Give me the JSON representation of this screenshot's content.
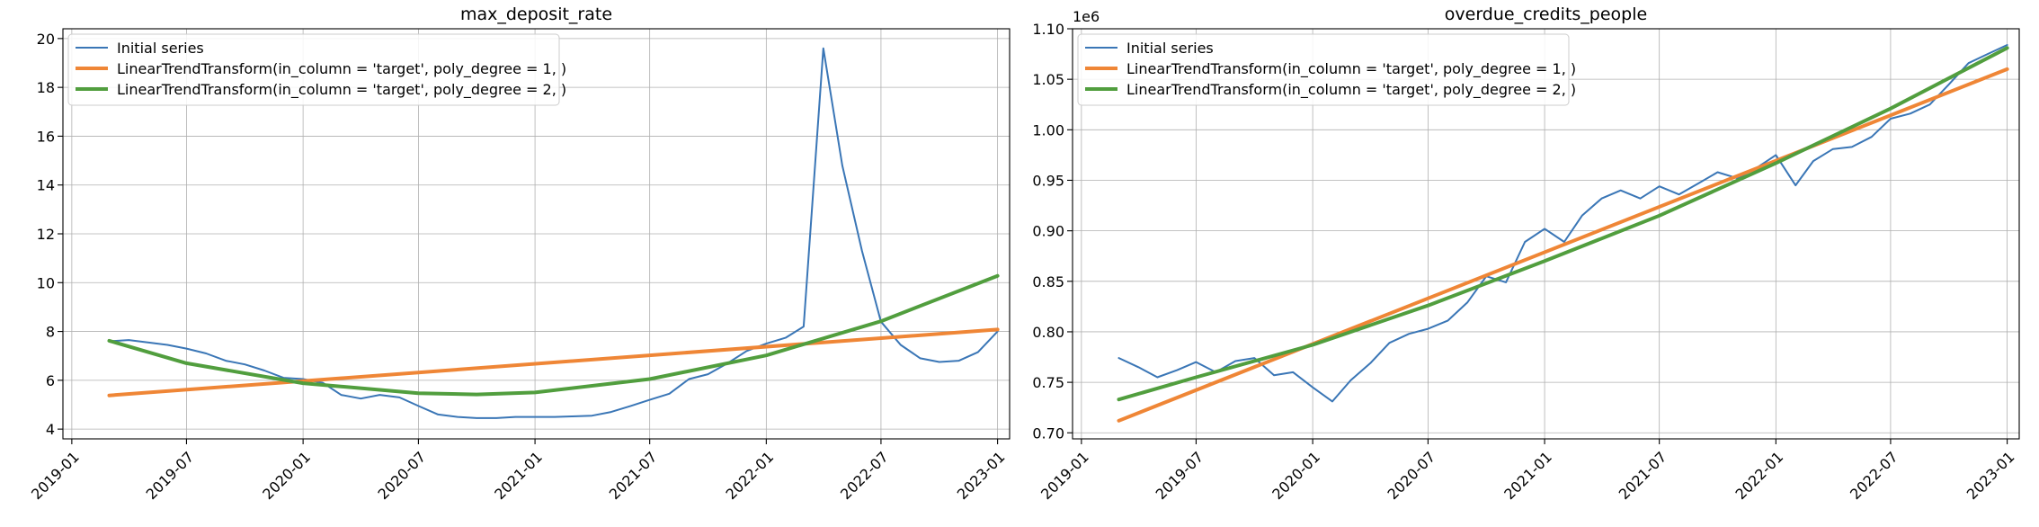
{
  "chart_data": [
    {
      "type": "line",
      "title": "max_deposit_rate",
      "xlabel": "",
      "ylabel": "",
      "offset_label": "",
      "x_ticks": [
        "2019-01-01",
        "2019-07-01",
        "2020-01-01",
        "2020-07-01",
        "2021-01-01",
        "2021-07-01",
        "2022-01-01",
        "2022-07-01",
        "2023-01-01"
      ],
      "x_tick_labels": [
        "2019-01",
        "2019-07",
        "2020-01",
        "2020-07",
        "2021-01",
        "2021-07",
        "2022-01",
        "2022-07",
        "2023-01"
      ],
      "xlim": [
        "2018-12-18",
        "2023-01-20"
      ],
      "ylim": [
        3.6,
        20.4
      ],
      "y_ticks": [
        4,
        6,
        8,
        10,
        12,
        14,
        16,
        18,
        20
      ],
      "y_tick_labels": [
        "4",
        "6",
        "8",
        "10",
        "12",
        "14",
        "16",
        "18",
        "20"
      ],
      "grid": true,
      "legend": "upper-left",
      "series": [
        {
          "name": "Initial series",
          "color": "#3a76b6",
          "width": 2,
          "points": [
            [
              "2019-03-01",
              7.6
            ],
            [
              "2019-04-01",
              7.65
            ],
            [
              "2019-05-01",
              7.55
            ],
            [
              "2019-06-01",
              7.45
            ],
            [
              "2019-07-01",
              7.3
            ],
            [
              "2019-08-01",
              7.1
            ],
            [
              "2019-09-01",
              6.8
            ],
            [
              "2019-10-01",
              6.65
            ],
            [
              "2019-11-01",
              6.4
            ],
            [
              "2019-12-01",
              6.1
            ],
            [
              "2020-01-01",
              6.05
            ],
            [
              "2020-02-01",
              5.9
            ],
            [
              "2020-03-01",
              5.4
            ],
            [
              "2020-04-01",
              5.25
            ],
            [
              "2020-05-01",
              5.4
            ],
            [
              "2020-06-01",
              5.3
            ],
            [
              "2020-07-01",
              4.95
            ],
            [
              "2020-08-01",
              4.6
            ],
            [
              "2020-09-01",
              4.5
            ],
            [
              "2020-10-01",
              4.45
            ],
            [
              "2020-11-01",
              4.45
            ],
            [
              "2020-12-01",
              4.5
            ],
            [
              "2021-01-01",
              4.5
            ],
            [
              "2021-02-01",
              4.5
            ],
            [
              "2021-03-01",
              4.52
            ],
            [
              "2021-04-01",
              4.55
            ],
            [
              "2021-05-01",
              4.7
            ],
            [
              "2021-06-01",
              4.95
            ],
            [
              "2021-07-01",
              5.2
            ],
            [
              "2021-08-01",
              5.45
            ],
            [
              "2021-09-01",
              6.05
            ],
            [
              "2021-10-01",
              6.25
            ],
            [
              "2021-11-01",
              6.7
            ],
            [
              "2021-12-01",
              7.2
            ],
            [
              "2022-01-01",
              7.5
            ],
            [
              "2022-02-01",
              7.75
            ],
            [
              "2022-03-01",
              8.2
            ],
            [
              "2022-04-01",
              19.6
            ],
            [
              "2022-05-01",
              14.8
            ],
            [
              "2022-06-01",
              11.3
            ],
            [
              "2022-07-01",
              8.4
            ],
            [
              "2022-08-01",
              7.45
            ],
            [
              "2022-09-01",
              6.9
            ],
            [
              "2022-10-01",
              6.75
            ],
            [
              "2022-11-01",
              6.8
            ],
            [
              "2022-12-01",
              7.15
            ],
            [
              "2023-01-01",
              8.0
            ]
          ]
        },
        {
          "name": "LinearTrendTransform(in_column = 'target', poly_degree = 1, )",
          "color": "#ef8636",
          "width": 4,
          "points": [
            [
              "2019-03-01",
              5.38
            ],
            [
              "2023-01-01",
              8.08
            ]
          ]
        },
        {
          "name": "LinearTrendTransform(in_column = 'target', poly_degree = 2, )",
          "color": "#519e3e",
          "width": 4,
          "points": [
            [
              "2019-03-01",
              7.62
            ],
            [
              "2019-07-01",
              6.7
            ],
            [
              "2020-01-01",
              5.88
            ],
            [
              "2020-07-01",
              5.47
            ],
            [
              "2020-10-01",
              5.42
            ],
            [
              "2021-01-01",
              5.5
            ],
            [
              "2021-07-01",
              6.05
            ],
            [
              "2022-01-01",
              7.02
            ],
            [
              "2022-07-01",
              8.42
            ],
            [
              "2023-01-01",
              10.28
            ]
          ]
        }
      ]
    },
    {
      "type": "line",
      "title": "overdue_credits_people",
      "xlabel": "",
      "ylabel": "",
      "offset_label": "1e6",
      "x_ticks": [
        "2019-01-01",
        "2019-07-01",
        "2020-01-01",
        "2020-07-01",
        "2021-01-01",
        "2021-07-01",
        "2022-01-01",
        "2022-07-01",
        "2023-01-01"
      ],
      "x_tick_labels": [
        "2019-01",
        "2019-07",
        "2020-01",
        "2020-07",
        "2021-01",
        "2021-07",
        "2022-01",
        "2022-07",
        "2023-01"
      ],
      "xlim": [
        "2018-12-18",
        "2023-01-20"
      ],
      "ylim": [
        0.694,
        1.1
      ],
      "y_ticks": [
        0.7,
        0.75,
        0.8,
        0.85,
        0.9,
        0.95,
        1.0,
        1.05,
        1.1
      ],
      "y_tick_labels": [
        "0.70",
        "0.75",
        "0.80",
        "0.85",
        "0.90",
        "0.95",
        "1.00",
        "1.05",
        "1.10"
      ],
      "grid": true,
      "legend": "upper-left",
      "series": [
        {
          "name": "Initial series",
          "color": "#3a76b6",
          "width": 2,
          "points": [
            [
              "2019-03-01",
              0.774
            ],
            [
              "2019-04-01",
              0.765
            ],
            [
              "2019-05-01",
              0.755
            ],
            [
              "2019-06-01",
              0.762
            ],
            [
              "2019-07-01",
              0.77
            ],
            [
              "2019-08-01",
              0.76
            ],
            [
              "2019-09-01",
              0.771
            ],
            [
              "2019-10-01",
              0.774
            ],
            [
              "2019-11-01",
              0.757
            ],
            [
              "2019-12-01",
              0.76
            ],
            [
              "2020-01-01",
              0.745
            ],
            [
              "2020-02-01",
              0.731
            ],
            [
              "2020-03-01",
              0.752
            ],
            [
              "2020-04-01",
              0.769
            ],
            [
              "2020-05-01",
              0.789
            ],
            [
              "2020-06-01",
              0.798
            ],
            [
              "2020-07-01",
              0.803
            ],
            [
              "2020-08-01",
              0.811
            ],
            [
              "2020-09-01",
              0.829
            ],
            [
              "2020-10-01",
              0.855
            ],
            [
              "2020-11-01",
              0.849
            ],
            [
              "2020-12-01",
              0.889
            ],
            [
              "2021-01-01",
              0.902
            ],
            [
              "2021-02-01",
              0.889
            ],
            [
              "2021-03-01",
              0.915
            ],
            [
              "2021-04-01",
              0.932
            ],
            [
              "2021-05-01",
              0.94
            ],
            [
              "2021-06-01",
              0.932
            ],
            [
              "2021-07-01",
              0.944
            ],
            [
              "2021-08-01",
              0.936
            ],
            [
              "2021-09-01",
              0.947
            ],
            [
              "2021-10-01",
              0.958
            ],
            [
              "2021-11-01",
              0.952
            ],
            [
              "2021-12-01",
              0.962
            ],
            [
              "2022-01-01",
              0.975
            ],
            [
              "2022-02-01",
              0.945
            ],
            [
              "2022-03-01",
              0.969
            ],
            [
              "2022-04-01",
              0.981
            ],
            [
              "2022-05-01",
              0.983
            ],
            [
              "2022-06-01",
              0.993
            ],
            [
              "2022-07-01",
              1.011
            ],
            [
              "2022-08-01",
              1.016
            ],
            [
              "2022-09-01",
              1.025
            ],
            [
              "2022-10-01",
              1.045
            ],
            [
              "2022-11-01",
              1.066
            ],
            [
              "2022-12-01",
              1.075
            ],
            [
              "2023-01-01",
              1.084
            ]
          ]
        },
        {
          "name": "LinearTrendTransform(in_column = 'target', poly_degree = 1, )",
          "color": "#ef8636",
          "width": 4,
          "points": [
            [
              "2019-03-01",
              0.712
            ],
            [
              "2023-01-01",
              1.06
            ]
          ]
        },
        {
          "name": "LinearTrendTransform(in_column = 'target', poly_degree = 2, )",
          "color": "#519e3e",
          "width": 4,
          "points": [
            [
              "2019-03-01",
              0.733
            ],
            [
              "2019-07-01",
              0.755
            ],
            [
              "2020-01-01",
              0.787
            ],
            [
              "2020-07-01",
              0.826
            ],
            [
              "2021-01-01",
              0.87
            ],
            [
              "2021-07-01",
              0.915
            ],
            [
              "2022-01-01",
              0.967
            ],
            [
              "2022-07-01",
              1.021
            ],
            [
              "2023-01-01",
              1.081
            ]
          ]
        }
      ]
    }
  ]
}
